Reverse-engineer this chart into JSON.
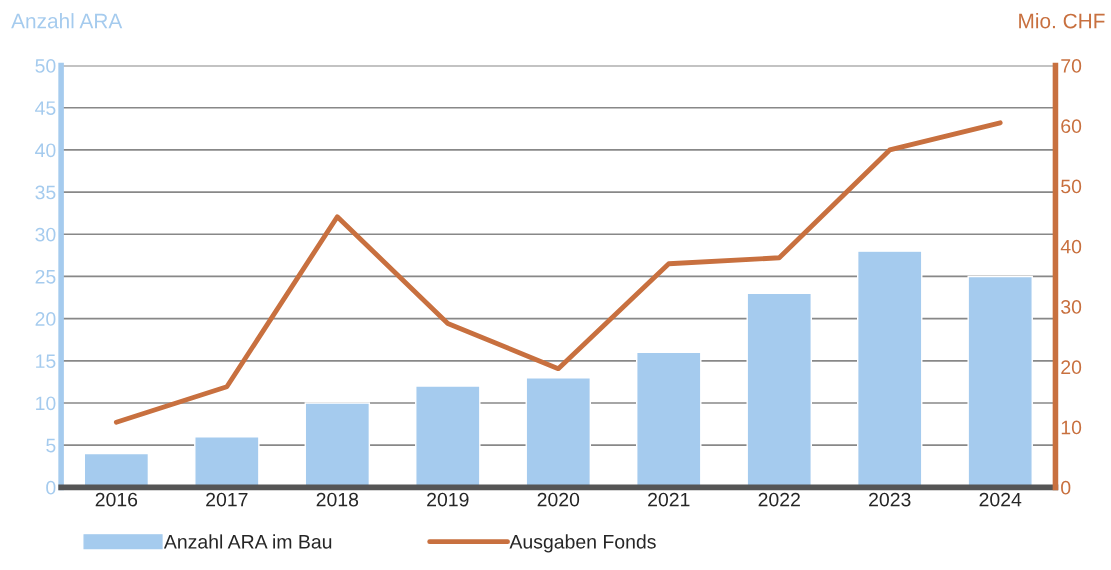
{
  "chart_data": {
    "type": "bar",
    "ylabel": "Anzahl ARA",
    "y2label": "Mio. CHF",
    "categories": [
      "2016",
      "2017",
      "2018",
      "2019",
      "2020",
      "2021",
      "2022",
      "2023",
      "2024"
    ],
    "series": [
      {
        "name": "Anzahl ARA im Bau",
        "color": "#a5cbee",
        "values": [
          4,
          6,
          10,
          12,
          13,
          16,
          23,
          28,
          25
        ]
      },
      {
        "name": "Ausgaben Fonds",
        "type": "line",
        "axis": "y2",
        "color": "#c8703f",
        "values": [
          10.8,
          16.7,
          44.9,
          27.2,
          19.7,
          37.1,
          38.1,
          56,
          60.5
        ]
      }
    ],
    "ylim": [
      0,
      50
    ],
    "yticks": [
      0,
      5,
      10,
      15,
      20,
      25,
      30,
      35,
      40,
      45,
      50
    ],
    "y2lim": [
      0,
      70
    ],
    "y2ticks": [
      0,
      10,
      20,
      30,
      40,
      50,
      60,
      70
    ],
    "grid": "y",
    "legend": "bottom",
    "marker": "none",
    "line_style": "solid"
  }
}
